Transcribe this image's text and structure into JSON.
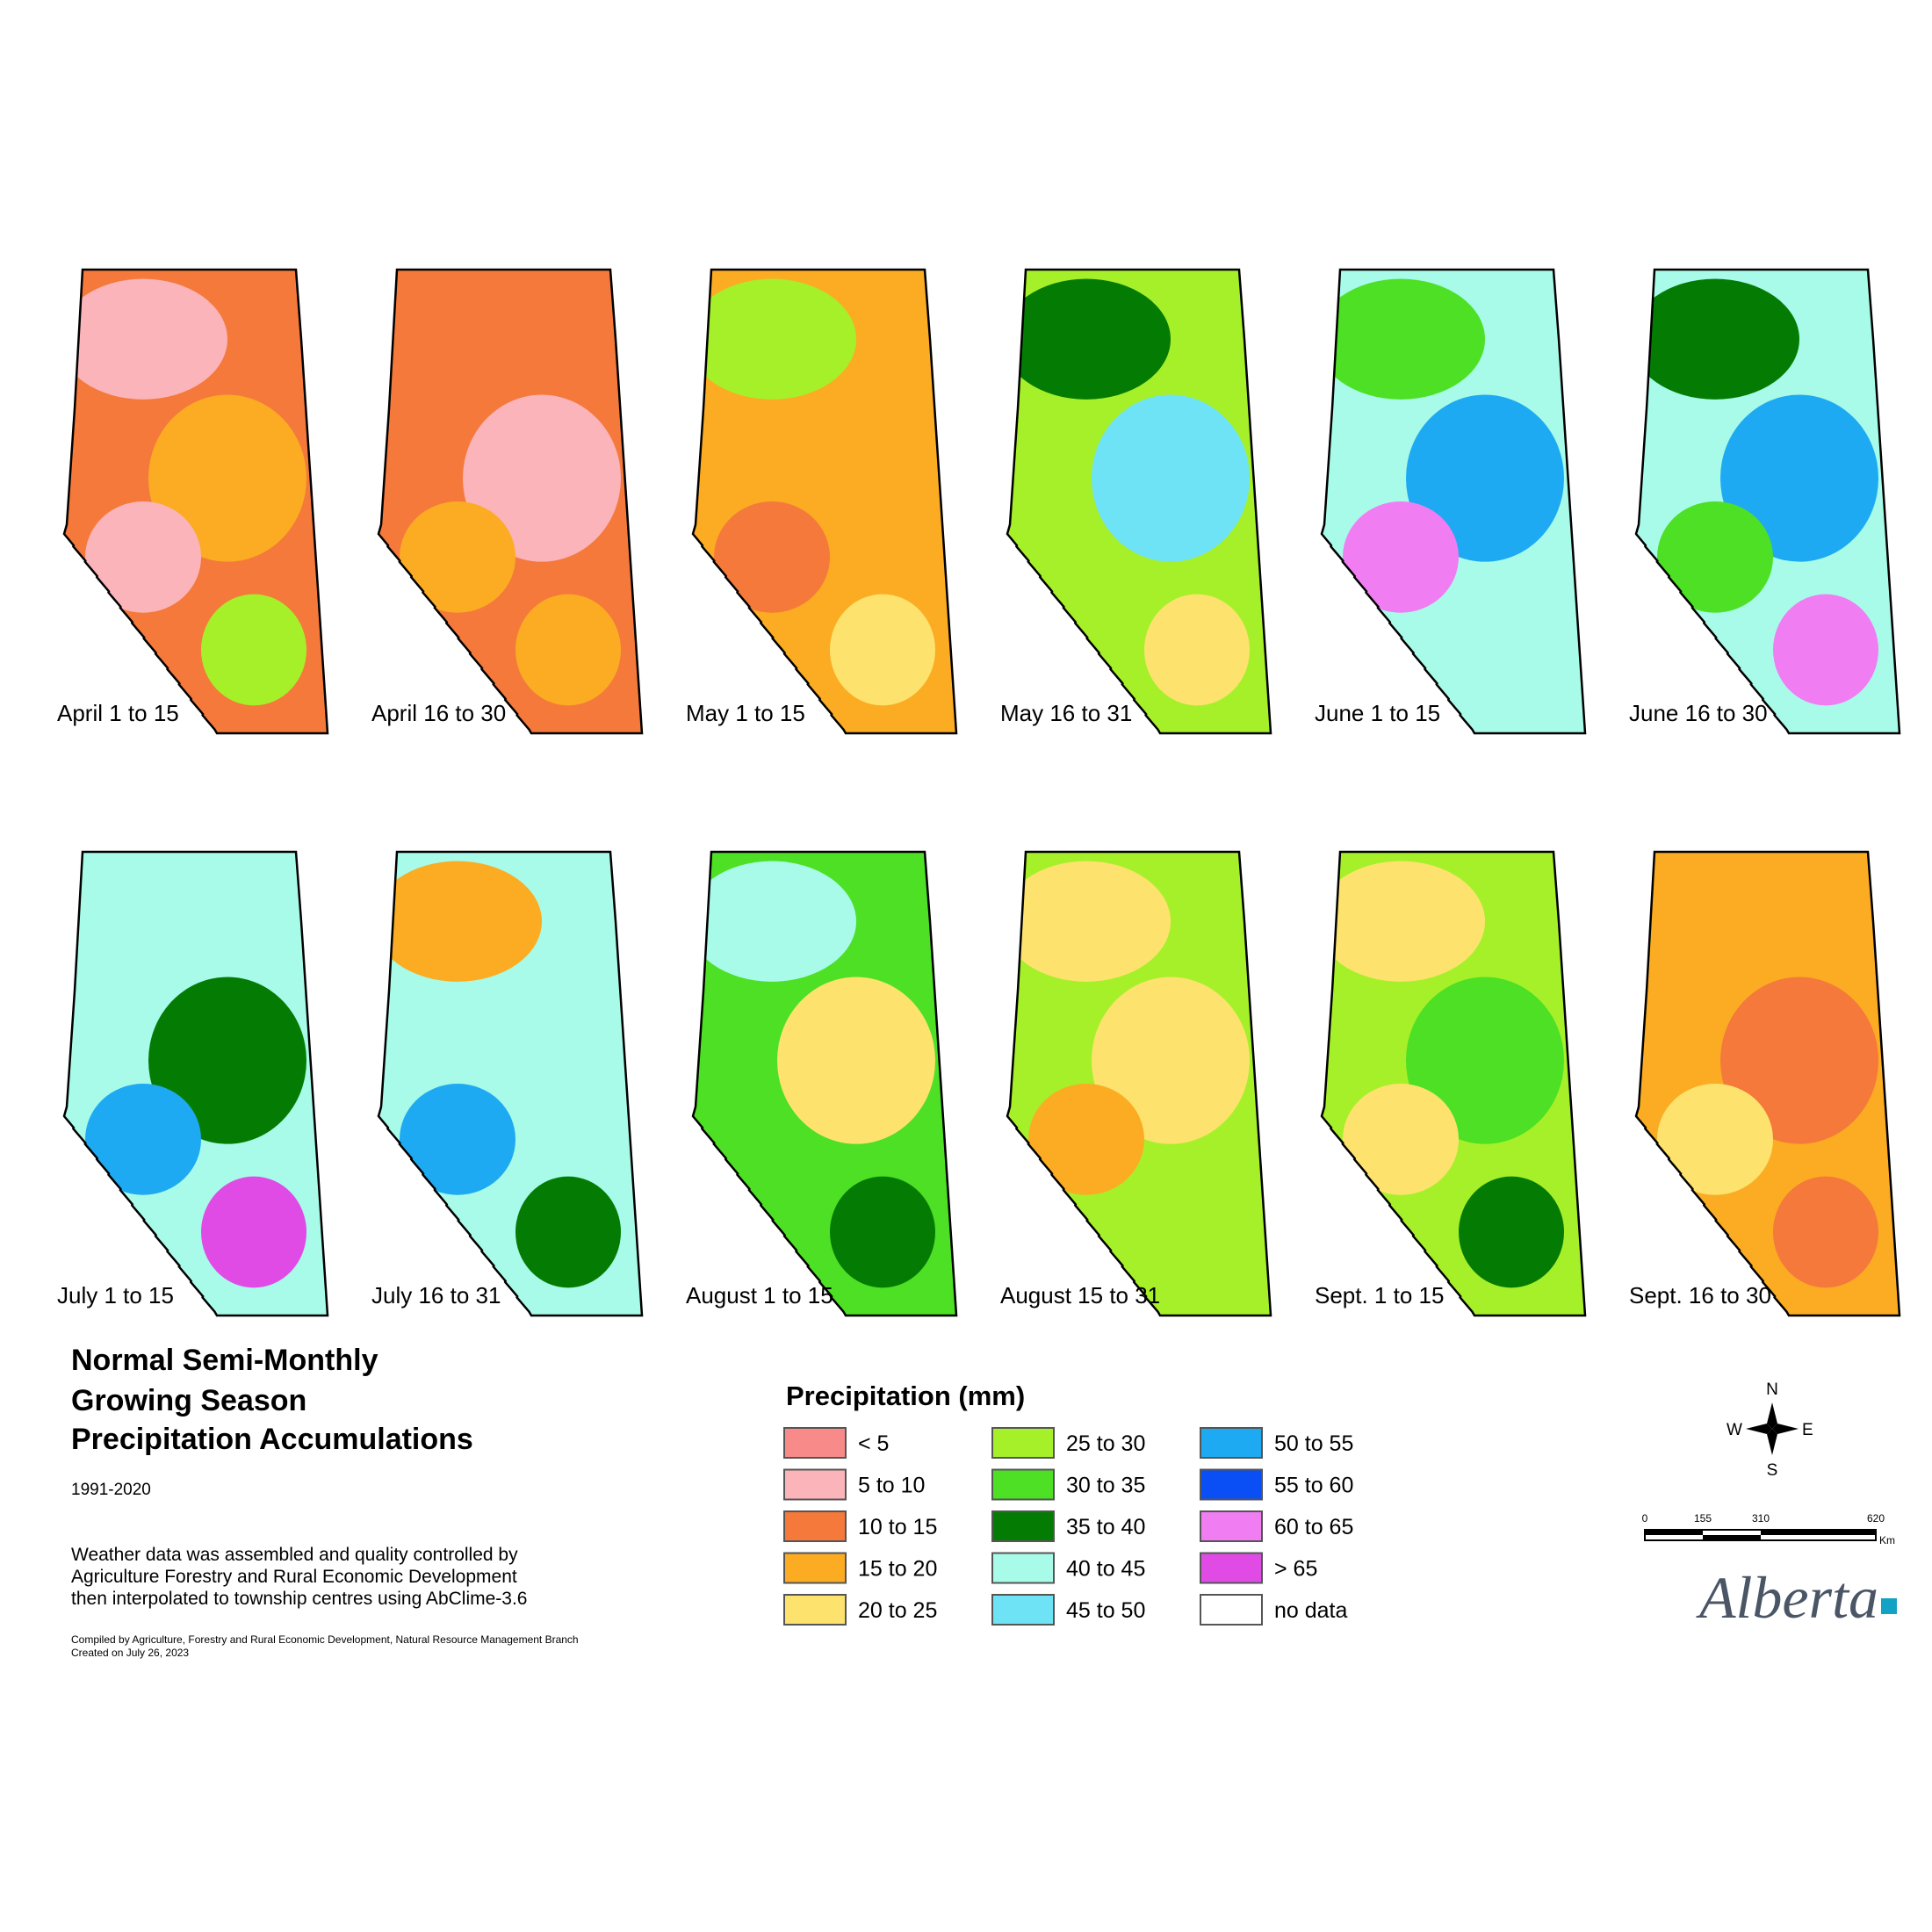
{
  "header": {
    "title_lines": [
      "Normal Semi-Monthly",
      "Growing Season",
      "Precipitation Accumulations"
    ],
    "period": "1991-2020",
    "notes": [
      "Weather data was assembled and quality controlled by",
      "Agriculture Forestry and Rural Economic Development",
      "then interpolated to township centres using AbClime-3.6"
    ],
    "credits": [
      "Compiled by Agriculture, Forestry and Rural Economic Development, Natural Resource Management Branch",
      "Created on July 26, 2023"
    ]
  },
  "panels": [
    {
      "label": "April 1 to 15",
      "colors": [
        "#f4793b",
        "#fbb4b9",
        "#fbac23",
        "#fbb4b9",
        "#a6f02a"
      ]
    },
    {
      "label": "April 16 to 30",
      "colors": [
        "#f4793b",
        "#fbb4b9",
        "#fbac23",
        "#fbac23",
        "#f4793b"
      ]
    },
    {
      "label": "May 1 to 15",
      "colors": [
        "#fbac23",
        "#f4793b",
        "#fde36e",
        "#fde36e",
        "#a6f02a"
      ]
    },
    {
      "label": "May 16 to 31",
      "colors": [
        "#a6f02a",
        "#fde36e",
        "#4de024",
        "#047c04",
        "#6ee3f5"
      ]
    },
    {
      "label": "June 1 to 15",
      "colors": [
        "#a8fbe9",
        "#047c04",
        "#4de024",
        "#1eaaf2",
        "#f17df2"
      ]
    },
    {
      "label": "June 16 to 30",
      "colors": [
        "#a8fbe9",
        "#047c04",
        "#1eaaf2",
        "#4de024",
        "#f17df2"
      ]
    },
    {
      "label": "July 1 to 15",
      "colors": [
        "#a8fbe9",
        "#047c04",
        "#1eaaf2",
        "#e04be6",
        "#fde36e"
      ]
    },
    {
      "label": "July 16 to 31",
      "colors": [
        "#a8fbe9",
        "#1eaaf2",
        "#047c04",
        "#fde36e",
        "#fbac23"
      ]
    },
    {
      "label": "August 1 to 15",
      "colors": [
        "#4de024",
        "#047c04",
        "#a6f02a",
        "#a8fbe9",
        "#fde36e"
      ]
    },
    {
      "label": "August 15 to 31",
      "colors": [
        "#a6f02a",
        "#4de024",
        "#fde36e",
        "#fde36e",
        "#fbac23"
      ]
    },
    {
      "label": "Sept. 1 to 15",
      "colors": [
        "#a6f02a",
        "#fde36e",
        "#4de024",
        "#fde36e",
        "#047c04"
      ]
    },
    {
      "label": "Sept. 16 to 30",
      "colors": [
        "#fbac23",
        "#f4793b",
        "#fde36e",
        "#f4793b",
        "#fbb4b9"
      ]
    }
  ],
  "legend": {
    "title": "Precipitation (mm)",
    "items": [
      {
        "label": "< 5",
        "color": "#f98a8a"
      },
      {
        "label": "5 to 10",
        "color": "#fbb4b9"
      },
      {
        "label": "10 to 15",
        "color": "#f4793b"
      },
      {
        "label": "15 to 20",
        "color": "#fbac23"
      },
      {
        "label": "20 to 25",
        "color": "#fde36e"
      },
      {
        "label": "25 to 30",
        "color": "#a6f02a"
      },
      {
        "label": "30 to 35",
        "color": "#4de024"
      },
      {
        "label": "35 to 40",
        "color": "#047c04"
      },
      {
        "label": "40 to 45",
        "color": "#a8fbe9"
      },
      {
        "label": "45 to 50",
        "color": "#6ee3f5"
      },
      {
        "label": "50 to 55",
        "color": "#1eaaf2"
      },
      {
        "label": "55 to 60",
        "color": "#0a4ff5"
      },
      {
        "label": "60 to 65",
        "color": "#f17df2"
      },
      {
        "label": "> 65",
        "color": "#e04be6"
      },
      {
        "label": "no data",
        "color": "#ffffff"
      }
    ]
  },
  "compass": {
    "n": "N",
    "s": "S",
    "e": "E",
    "w": "W"
  },
  "scale": {
    "ticks": [
      "0",
      "155",
      "310",
      "620"
    ],
    "unit": "Km"
  },
  "logo": "Alberta"
}
